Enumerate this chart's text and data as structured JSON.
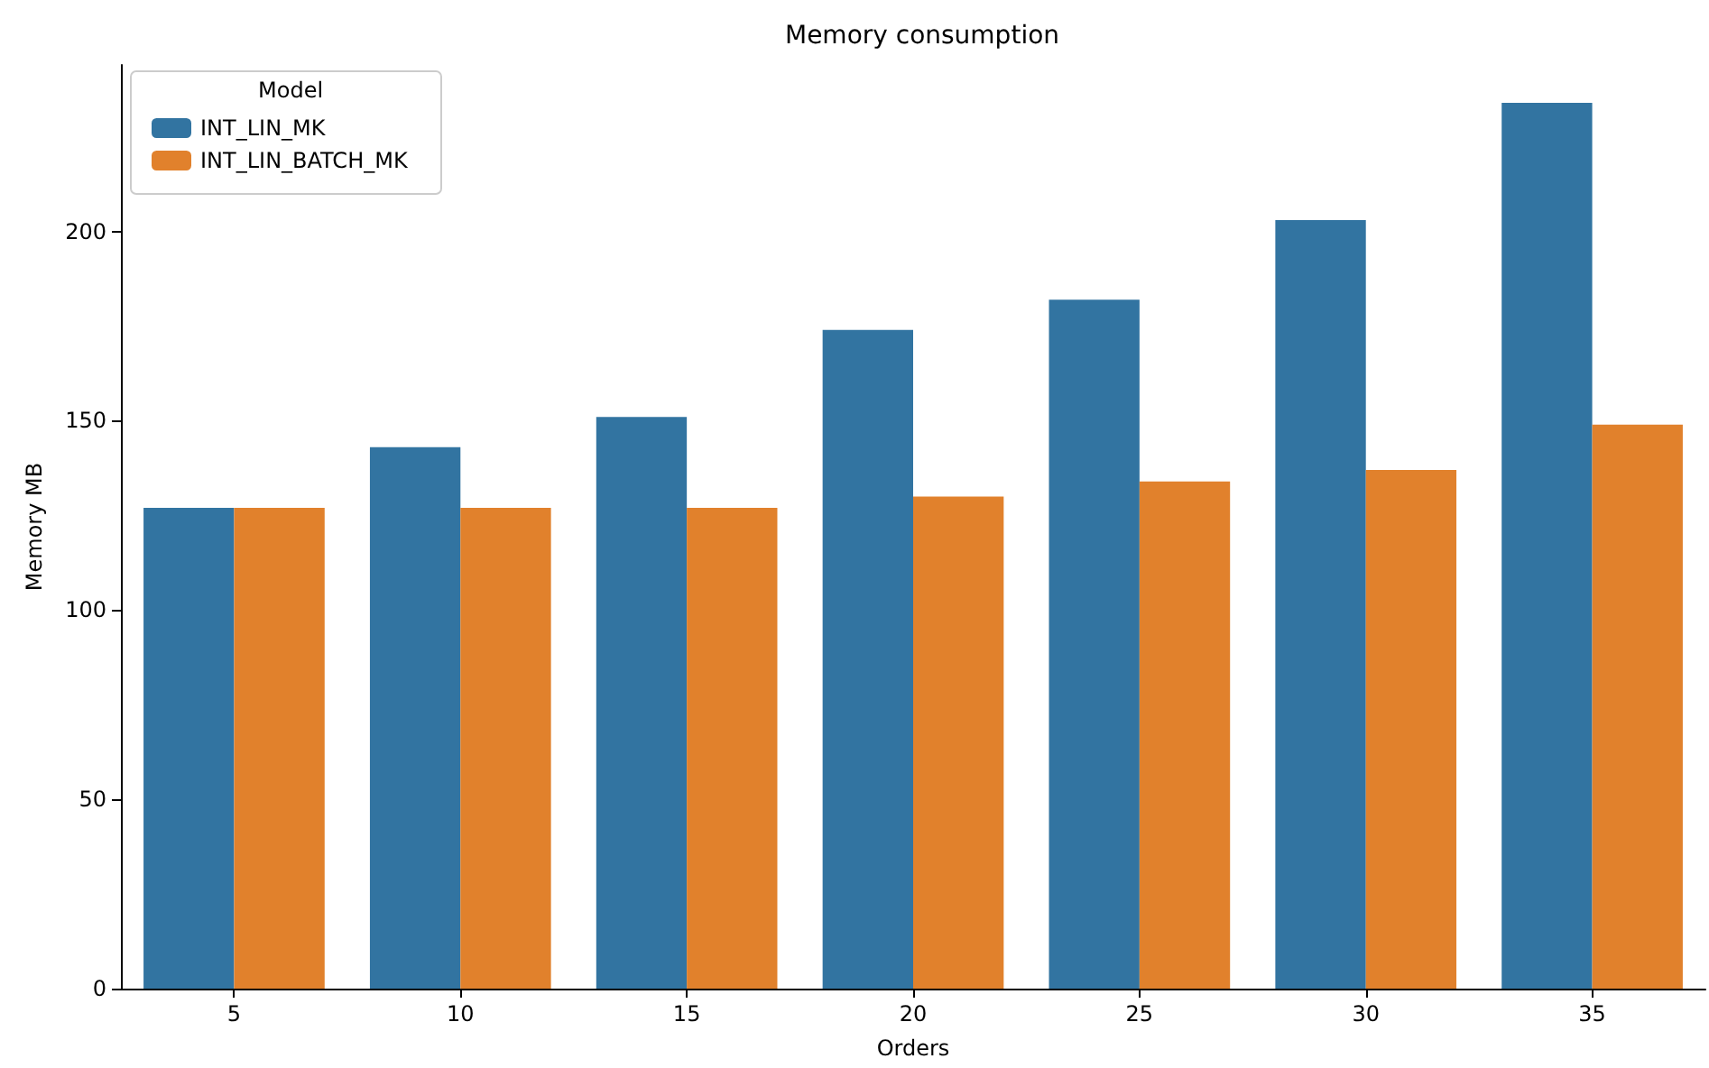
{
  "chart_data": {
    "type": "bar",
    "title": "Memory consumption",
    "xlabel": "Orders",
    "ylabel": "Memory MB",
    "legend_title": "Model",
    "categories": [
      "5",
      "10",
      "15",
      "20",
      "25",
      "30",
      "35"
    ],
    "series": [
      {
        "name": "INT_LIN_MK",
        "color": "#3274a1",
        "values": [
          127,
          143,
          151,
          174,
          182,
          203,
          234
        ]
      },
      {
        "name": "INT_LIN_BATCH_MK",
        "color": "#e1812c",
        "values": [
          127,
          127,
          127,
          130,
          134,
          137,
          149
        ]
      }
    ],
    "ylim": [
      0,
      244
    ],
    "yticks": [
      0,
      50,
      100,
      150,
      200
    ],
    "grid": false,
    "legend": "top left"
  }
}
